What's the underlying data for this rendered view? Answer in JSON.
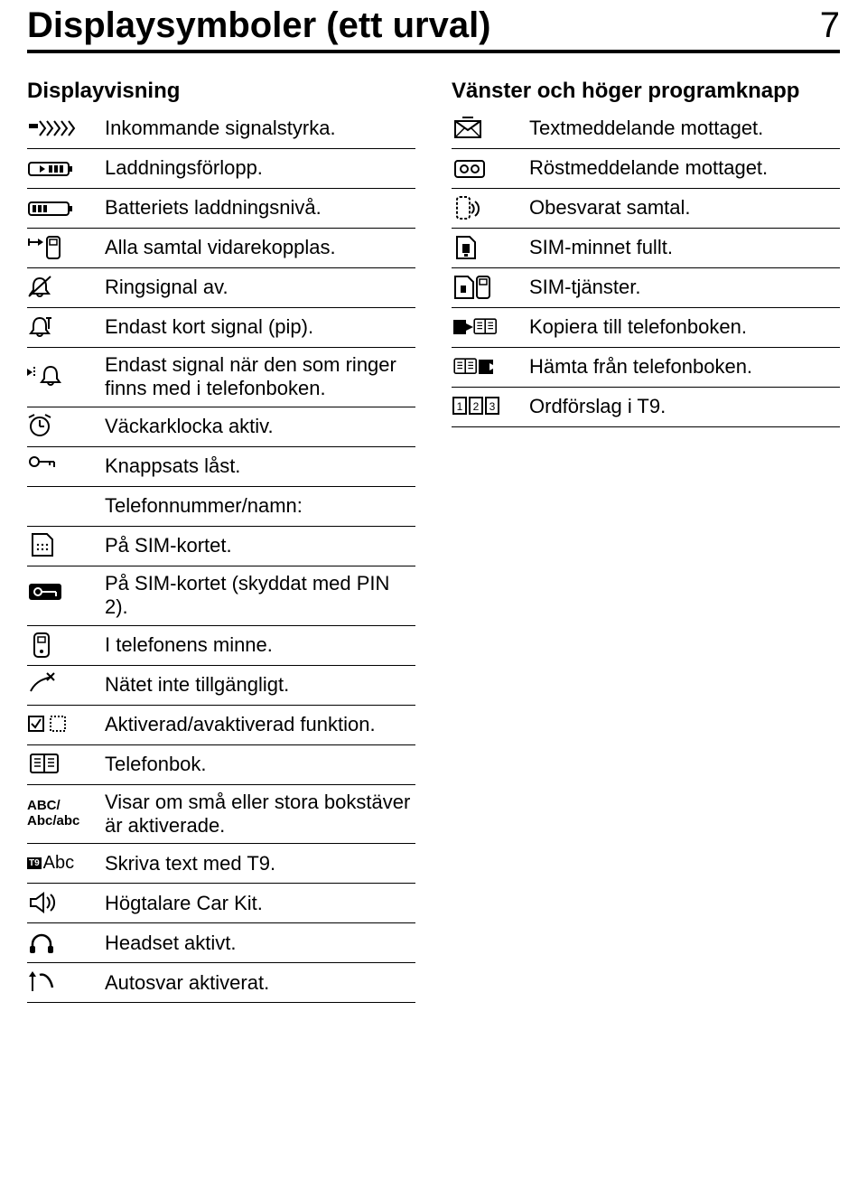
{
  "header": {
    "title": "Displaysymboler (ett urval)",
    "page": "7"
  },
  "left_heading": "Displayvisning",
  "right_heading": "Vänster och höger programknapp",
  "left": [
    {
      "icon": "signal",
      "text": "Inkommande signalstyrka."
    },
    {
      "icon": "charging",
      "text": "Laddningsförlopp."
    },
    {
      "icon": "battery",
      "text": "Batteriets laddningsnivå."
    },
    {
      "icon": "forward-all",
      "text": "Alla samtal vidarekopplas."
    },
    {
      "icon": "bell-off",
      "text": "Ringsignal av."
    },
    {
      "icon": "bell-beep",
      "text": "Endast kort signal (pip)."
    },
    {
      "icon": "bell-pb",
      "text": "Endast signal när den som ringer finns med i telefonboken."
    },
    {
      "icon": "alarm",
      "text": "Väckarklocka aktiv."
    },
    {
      "icon": "key-lock",
      "text": "Knappsats låst."
    },
    {
      "icon": "",
      "text": "Telefonnummer/namn:"
    },
    {
      "icon": "sim",
      "text": "På SIM-kortet."
    },
    {
      "icon": "sim-lock",
      "text": "På SIM-kortet (skyddat med PIN 2)."
    },
    {
      "icon": "phone-mem",
      "text": "I telefonens minne."
    },
    {
      "icon": "no-net",
      "text": "Nätet inte tillgängligt."
    },
    {
      "icon": "checkboxes",
      "text": "Aktiverad/avaktiverad funktion."
    },
    {
      "icon": "phonebook",
      "text": "Telefonbok."
    },
    {
      "icon": "abc",
      "text": "Visar om små eller stora bokstäver är aktiverade."
    },
    {
      "icon": "t9abc",
      "text": "Skriva text med T9."
    },
    {
      "icon": "speaker",
      "text": "Högtalare Car Kit."
    },
    {
      "icon": "headset",
      "text": "Headset aktivt."
    },
    {
      "icon": "autoanswer",
      "text": "Autosvar aktiverat."
    }
  ],
  "right": [
    {
      "icon": "msg-text",
      "text": "Textmeddelande mottaget."
    },
    {
      "icon": "msg-voice",
      "text": "Röstmeddelande mottaget."
    },
    {
      "icon": "missed-call",
      "text": "Obesvarat samtal."
    },
    {
      "icon": "sim-full",
      "text": "SIM-minnet fullt."
    },
    {
      "icon": "sim-services",
      "text": "SIM-tjänster."
    },
    {
      "icon": "copy-to-pb",
      "text": "Kopiera till telefonboken."
    },
    {
      "icon": "copy-from-pb",
      "text": "Hämta från telefonboken."
    },
    {
      "icon": "t9-suggest",
      "text": "Ordförslag i T9."
    }
  ],
  "icon_text": {
    "abc_line1": "ABC/",
    "abc_line2": "Abc/abc",
    "t9abc": "Abc",
    "t9_badge": "T9"
  },
  "colors": {
    "fg": "#000000",
    "bg": "#ffffff"
  }
}
